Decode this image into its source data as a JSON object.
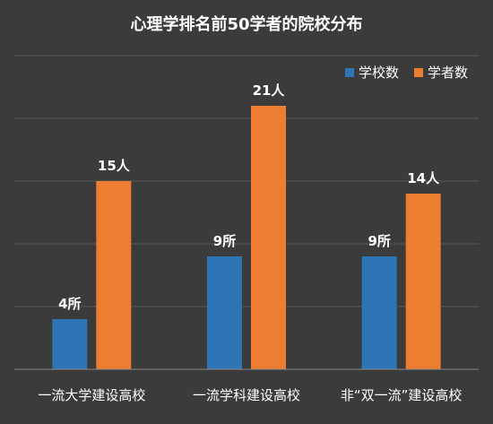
{
  "chart_data": {
    "type": "bar",
    "title": "心理学排名前50学者的院校分布",
    "categories": [
      "一流大学建设高校",
      "一流学科建设高校",
      "非“双一流”建设高校"
    ],
    "series": [
      {
        "name": "学校数",
        "values": [
          4,
          9,
          9
        ],
        "labels": [
          "4所",
          "9所",
          "9所"
        ],
        "color": "#2e75b6"
      },
      {
        "name": "学者数",
        "values": [
          15,
          21,
          14
        ],
        "labels": [
          "15人",
          "21人",
          "14人"
        ],
        "color": "#ed7d31"
      }
    ],
    "ylim": [
      0,
      25
    ],
    "grid": true,
    "legend_position": "top-right",
    "colors": {
      "background": "#3b3b3b",
      "text": "#ffffff",
      "grid": "#5a5a5a",
      "axis": "#8a8a8a"
    }
  }
}
